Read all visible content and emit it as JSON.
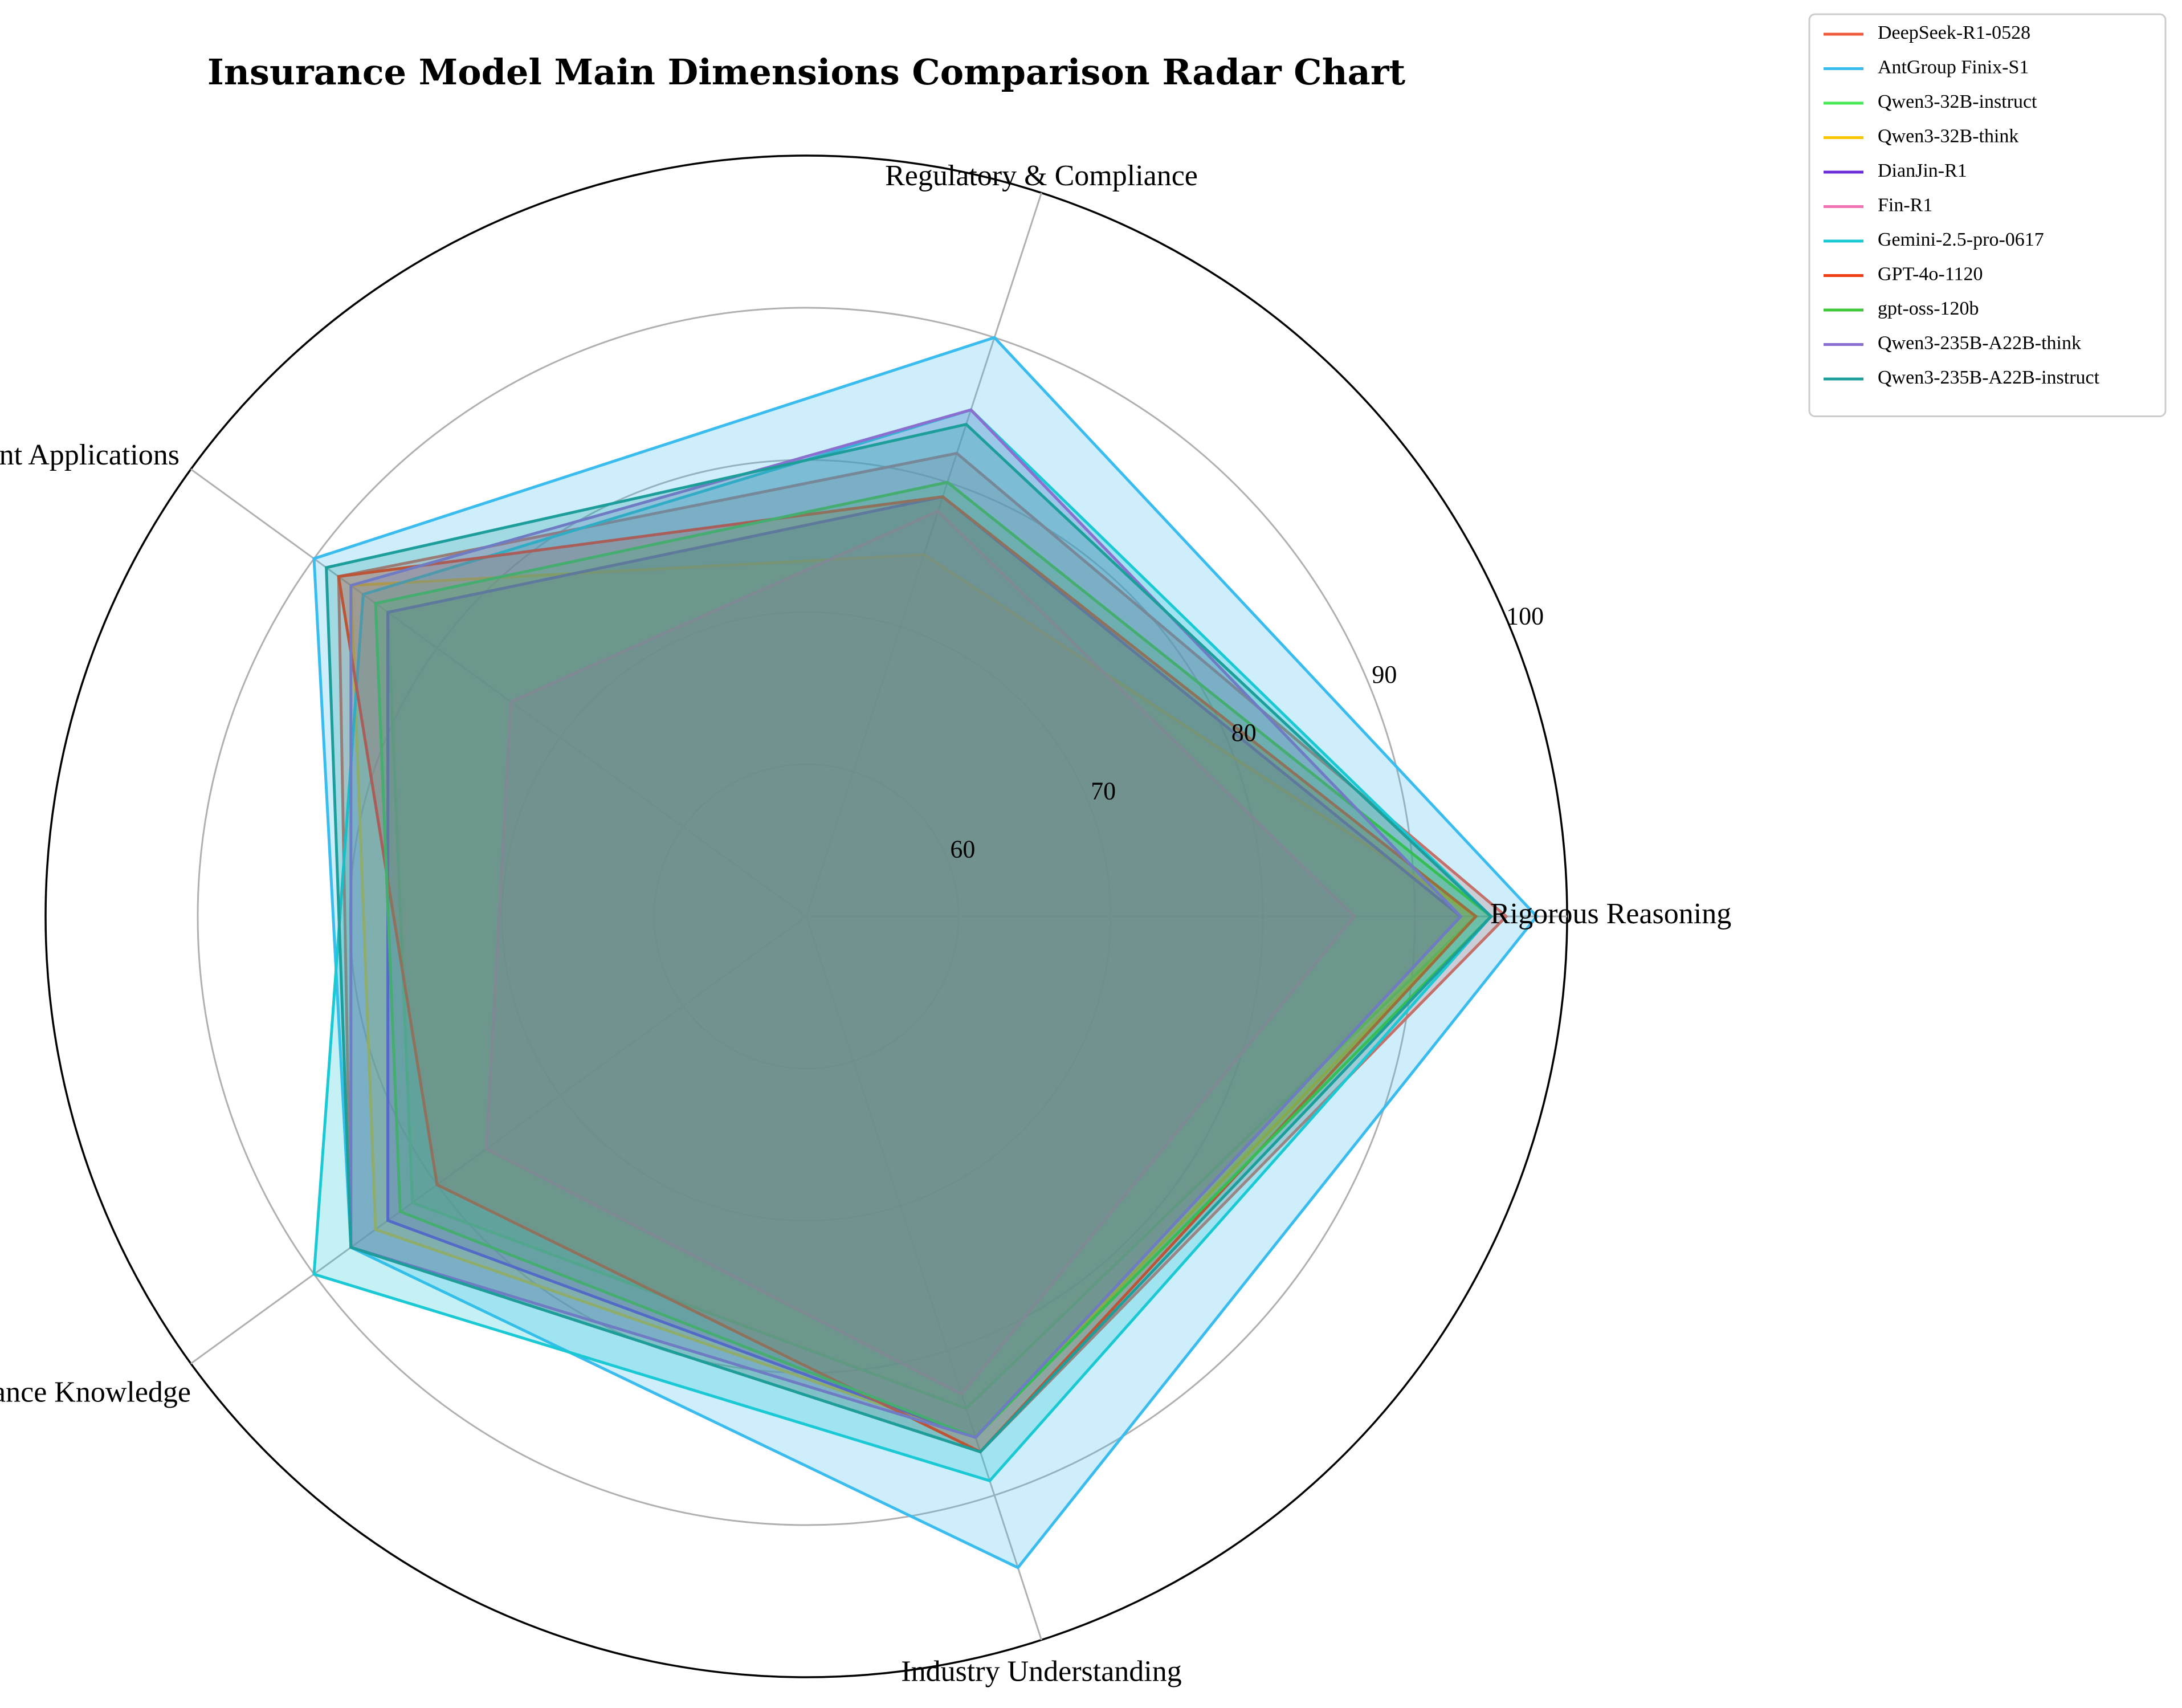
{
  "chart_data": {
    "type": "radar",
    "title": "Insurance Model Main Dimensions Comparison Radar Chart",
    "axes": [
      "Rigorous Reasoning",
      "Regulatory & Compliance",
      "Agent Applications",
      "Insurance Knowledge",
      "Industry Understanding"
    ],
    "rlim": [
      50,
      100
    ],
    "tick_values": [
      60,
      70,
      80,
      90,
      100
    ],
    "tick_labels": [
      "60",
      "70",
      "80",
      "90",
      "100"
    ],
    "grid": true,
    "legend_position": "top-right (outside plot)",
    "series": [
      {
        "name": "DeepSeek-R1-0528",
        "color": "#f0593e",
        "values": [
          96,
          82,
          88,
          87,
          87
        ]
      },
      {
        "name": "AntGroup Finix-S1",
        "color": "#3bbcef",
        "values": [
          98,
          90,
          90,
          87,
          95
        ]
      },
      {
        "name": "Qwen3-32B-instruct",
        "color": "#49e858",
        "values": [
          94,
          79,
          84,
          82,
          84
        ]
      },
      {
        "name": "Qwen3-32B-think",
        "color": "#f7c600",
        "values": [
          94,
          75,
          87,
          85,
          86
        ]
      },
      {
        "name": "DianJin-R1",
        "color": "#6b2bd9",
        "values": [
          93,
          79,
          84,
          84,
          86
        ]
      },
      {
        "name": "Fin-R1",
        "color": "#ef72b3",
        "values": [
          86,
          78,
          74,
          76,
          83
        ]
      },
      {
        "name": "Gemini-2.5-pro-0617",
        "color": "#1ac9d4",
        "values": [
          95,
          85,
          86,
          90,
          89
        ]
      },
      {
        "name": "GPT-4o-1120",
        "color": "#f03c15",
        "values": [
          94,
          79,
          88,
          80,
          87
        ]
      },
      {
        "name": "gpt-oss-120b",
        "color": "#3cc83b",
        "values": [
          95,
          80,
          85,
          83,
          86
        ]
      },
      {
        "name": "Qwen3-235B-A22B-think",
        "color": "#8a6fd0",
        "values": [
          93,
          85,
          87,
          87,
          86
        ]
      },
      {
        "name": "Qwen3-235B-A22B-instruct",
        "color": "#1e9e9a",
        "values": [
          95,
          84,
          89,
          87,
          87
        ]
      }
    ]
  }
}
